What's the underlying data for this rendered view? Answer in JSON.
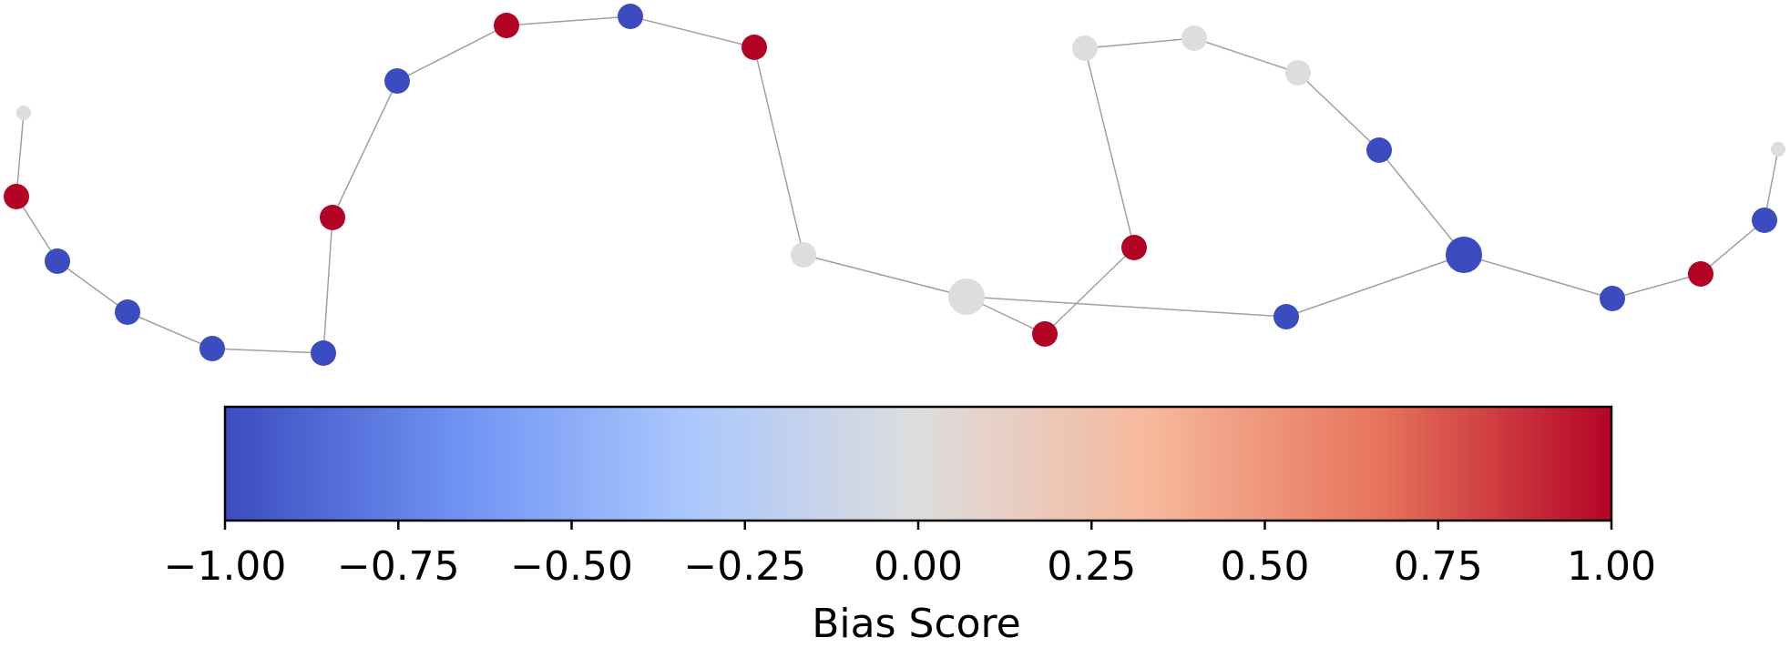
{
  "graph": {
    "nodes": [
      {
        "id": "n1",
        "bias": 0.0,
        "size": "small"
      },
      {
        "id": "n2",
        "bias": 1.0,
        "size": "normal"
      },
      {
        "id": "n3",
        "bias": -1.0,
        "size": "normal"
      },
      {
        "id": "n4",
        "bias": -1.0,
        "size": "normal"
      },
      {
        "id": "n5",
        "bias": -1.0,
        "size": "normal"
      },
      {
        "id": "n6",
        "bias": -1.0,
        "size": "normal"
      },
      {
        "id": "n7",
        "bias": 1.0,
        "size": "normal"
      },
      {
        "id": "n8",
        "bias": -1.0,
        "size": "normal"
      },
      {
        "id": "n9",
        "bias": 1.0,
        "size": "normal"
      },
      {
        "id": "n10",
        "bias": -1.0,
        "size": "normal"
      },
      {
        "id": "n11",
        "bias": 1.0,
        "size": "normal"
      },
      {
        "id": "n12",
        "bias": 0.0,
        "size": "normal"
      },
      {
        "id": "n13",
        "bias": 0.0,
        "size": "large"
      },
      {
        "id": "n14",
        "bias": 1.0,
        "size": "normal"
      },
      {
        "id": "n15",
        "bias": 1.0,
        "size": "normal"
      },
      {
        "id": "n16",
        "bias": 0.0,
        "size": "normal"
      },
      {
        "id": "n17",
        "bias": 0.0,
        "size": "normal"
      },
      {
        "id": "n18",
        "bias": 0.0,
        "size": "normal"
      },
      {
        "id": "n19",
        "bias": -1.0,
        "size": "normal"
      },
      {
        "id": "n20",
        "bias": -1.0,
        "size": "large"
      },
      {
        "id": "n21",
        "bias": -1.0,
        "size": "normal"
      },
      {
        "id": "n22",
        "bias": -1.0,
        "size": "normal"
      },
      {
        "id": "n23",
        "bias": 1.0,
        "size": "normal"
      },
      {
        "id": "n24",
        "bias": -1.0,
        "size": "normal"
      },
      {
        "id": "n25",
        "bias": 0.0,
        "size": "small"
      }
    ],
    "edges": [
      [
        "n1",
        "n2"
      ],
      [
        "n2",
        "n3"
      ],
      [
        "n3",
        "n4"
      ],
      [
        "n4",
        "n5"
      ],
      [
        "n5",
        "n6"
      ],
      [
        "n6",
        "n7"
      ],
      [
        "n7",
        "n8"
      ],
      [
        "n8",
        "n9"
      ],
      [
        "n9",
        "n10"
      ],
      [
        "n10",
        "n11"
      ],
      [
        "n11",
        "n12"
      ],
      [
        "n12",
        "n13"
      ],
      [
        "n13",
        "n14"
      ],
      [
        "n14",
        "n15"
      ],
      [
        "n15",
        "n16"
      ],
      [
        "n16",
        "n17"
      ],
      [
        "n17",
        "n18"
      ],
      [
        "n18",
        "n19"
      ],
      [
        "n19",
        "n20"
      ],
      [
        "n13",
        "n21"
      ],
      [
        "n21",
        "n20"
      ],
      [
        "n20",
        "n22"
      ],
      [
        "n22",
        "n23"
      ],
      [
        "n23",
        "n24"
      ],
      [
        "n24",
        "n25"
      ]
    ],
    "colors": {
      "negative": "#3b4cc0",
      "neutral": "#dddddd",
      "positive": "#b40426",
      "edge": "#a0a0a0"
    }
  },
  "colorbar": {
    "ticks": [
      "−1.00",
      "−0.75",
      "−0.50",
      "−0.25",
      "0.00",
      "0.25",
      "0.50",
      "0.75",
      "1.00"
    ],
    "label": "Bias Score",
    "range": [
      -1.0,
      1.0
    ],
    "colormap": "coolwarm",
    "stops": [
      "#3b4cc0",
      "#6f92f3",
      "#aac7fd",
      "#dddddd",
      "#f7b89c",
      "#e7745b",
      "#b40426"
    ]
  }
}
